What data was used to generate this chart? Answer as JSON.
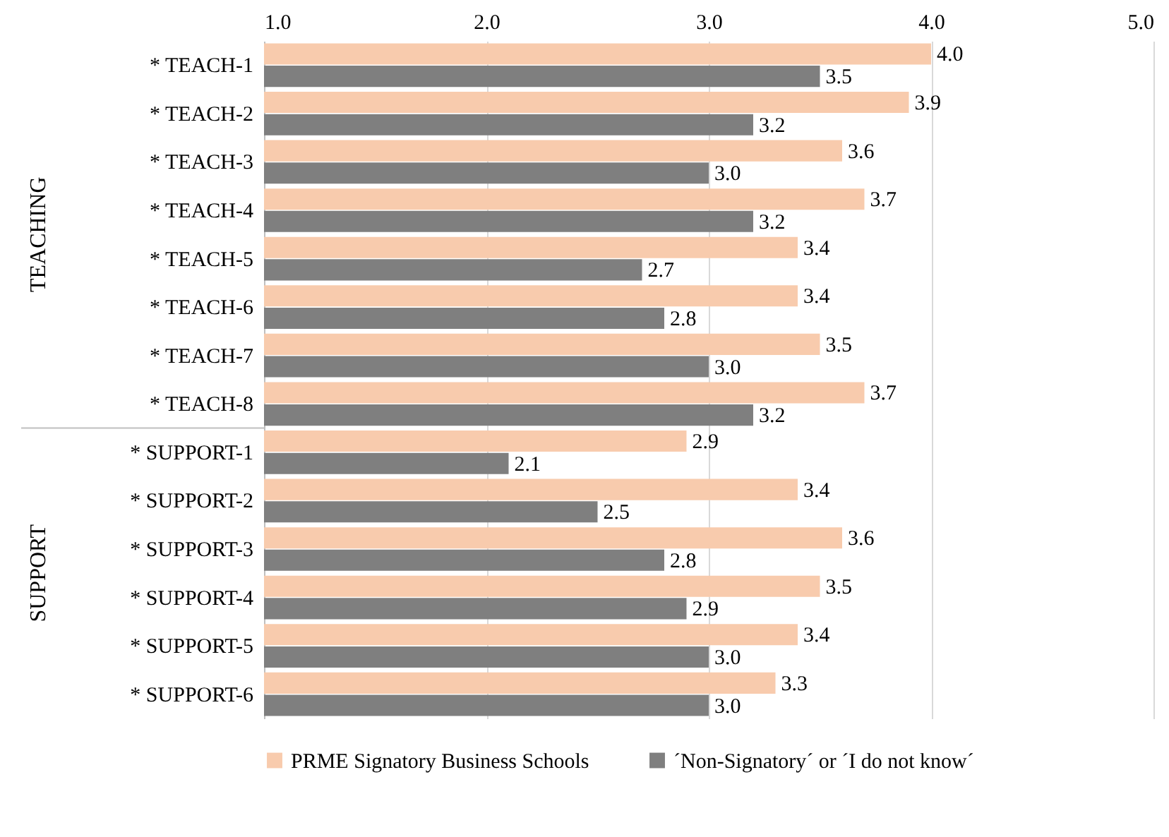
{
  "chart_data": {
    "type": "bar",
    "orientation": "horizontal",
    "categories": [
      "* TEACH-1",
      "* TEACH-2",
      "* TEACH-3",
      "* TEACH-4",
      "* TEACH-5",
      "* TEACH-6",
      "* TEACH-7",
      "* TEACH-8",
      "* SUPPORT-1",
      "* SUPPORT-2",
      "* SUPPORT-3",
      "* SUPPORT-4",
      "* SUPPORT-5",
      "* SUPPORT-6"
    ],
    "series": [
      {
        "name": "PRME Signatory Business Schools",
        "color": "#f8cbad",
        "values": [
          4.0,
          3.9,
          3.6,
          3.7,
          3.4,
          3.4,
          3.5,
          3.7,
          2.9,
          3.4,
          3.6,
          3.5,
          3.4,
          3.3
        ],
        "value_labels": [
          "4.0",
          "3.9",
          "3.6",
          "3.7",
          "3.4",
          "3.4",
          "3.5",
          "3.7",
          "2.9",
          "3.4",
          "3.6",
          "3.5",
          "3.4",
          "3.3"
        ]
      },
      {
        "name": "´Non-Signatory´ or ´I do not know´",
        "color": "#7f7f7f",
        "values": [
          3.5,
          3.2,
          3.0,
          3.2,
          2.7,
          2.8,
          3.0,
          3.2,
          2.1,
          2.5,
          2.8,
          2.9,
          3.0,
          3.0
        ],
        "value_labels": [
          "3.5",
          "3.2",
          "3.0",
          "3.2",
          "2.7",
          "2.8",
          "3.0",
          "3.2",
          "2.1",
          "2.5",
          "2.8",
          "2.9",
          "3.0",
          "3.0"
        ]
      }
    ],
    "xlim": [
      1.0,
      5.0
    ],
    "xticks": [
      {
        "value": 1,
        "label": "1.0"
      },
      {
        "value": 2,
        "label": "2.0"
      },
      {
        "value": 3,
        "label": "3.0"
      },
      {
        "value": 4,
        "label": "4.0"
      },
      {
        "value": 5,
        "label": "5.0"
      }
    ],
    "annotations": [
      "TEACHING",
      "SUPPORT"
    ],
    "grid": "x",
    "legend": "bottom"
  }
}
